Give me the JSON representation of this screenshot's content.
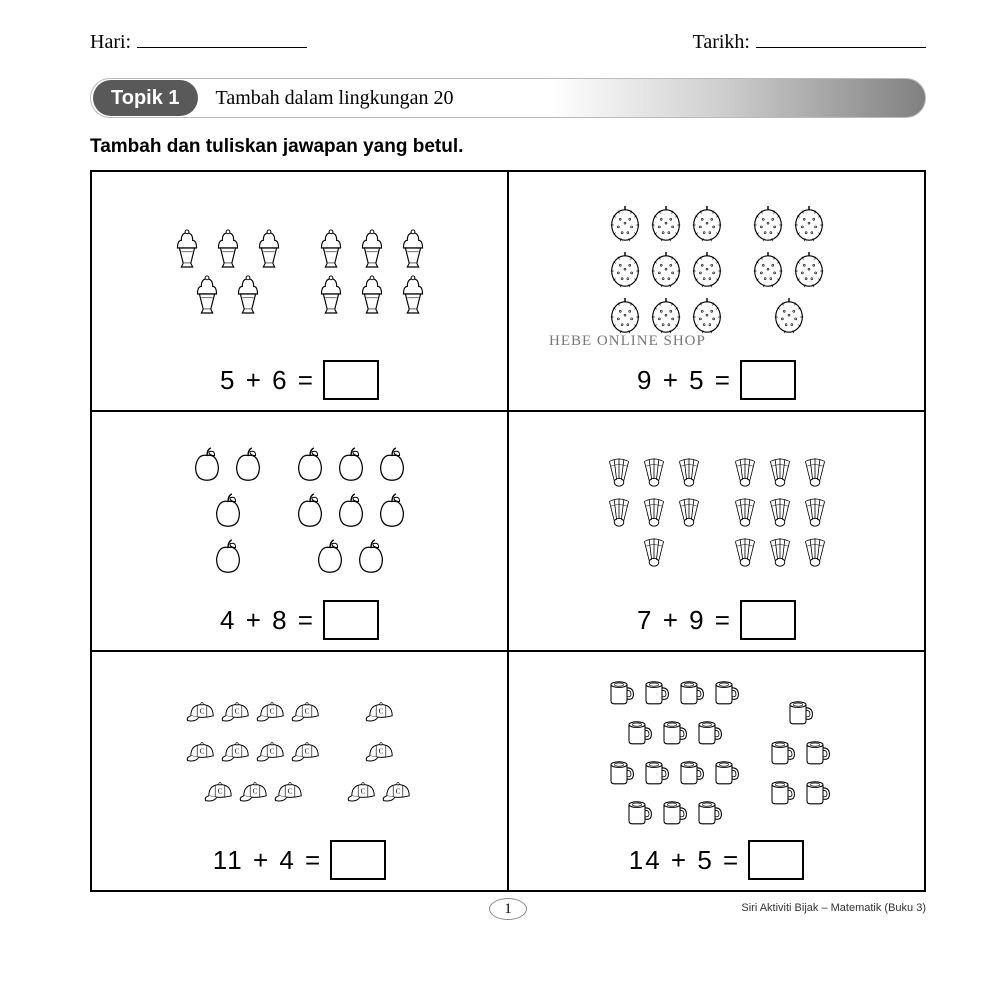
{
  "header": {
    "day_label": "Hari:",
    "date_label": "Tarikh:"
  },
  "topic": {
    "badge": "Topik 1",
    "title": "Tambah dalam lingkungan 20"
  },
  "instruction": "Tambah dan tuliskan jawapan yang betul.",
  "watermark": "HEBE ONLINE SHOP",
  "problems": [
    {
      "a": 5,
      "b": 6,
      "icon": "icecream",
      "layoutA": [
        3,
        2
      ],
      "layoutB": [
        3,
        3
      ]
    },
    {
      "a": 9,
      "b": 5,
      "icon": "durian",
      "layoutA": [
        3,
        3,
        3
      ],
      "layoutB": [
        2,
        2,
        1
      ]
    },
    {
      "a": 4,
      "b": 8,
      "icon": "apple",
      "layoutA": [
        2,
        1,
        1
      ],
      "layoutB": [
        3,
        3,
        2
      ]
    },
    {
      "a": 7,
      "b": 9,
      "icon": "shuttle",
      "layoutA": [
        3,
        3,
        1
      ],
      "layoutB": [
        3,
        3,
        3
      ]
    },
    {
      "a": 11,
      "b": 4,
      "icon": "cap",
      "layoutA": [
        4,
        4,
        3
      ],
      "layoutB": [
        1,
        1,
        2
      ]
    },
    {
      "a": 14,
      "b": 5,
      "icon": "mug",
      "layoutA": [
        4,
        3,
        4,
        3
      ],
      "layoutB": [
        1,
        2,
        2
      ]
    }
  ],
  "footer": {
    "page": "1",
    "series": "Siri Aktiviti Bijak – Matematik (Buku 3)"
  },
  "colors": {
    "stroke": "#000000",
    "fill": "#ffffff"
  }
}
